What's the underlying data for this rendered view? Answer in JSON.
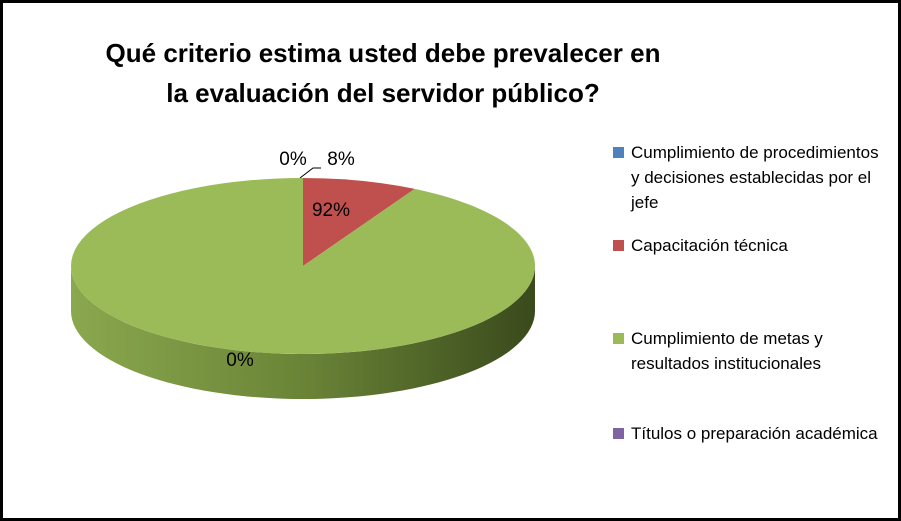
{
  "chart_data": {
    "type": "pie3d",
    "title": "Qué criterio estima usted debe prevalecer en la evaluación del servidor público?",
    "categories": [
      "Cumplimiento de procedimientos y decisiones establecidas por el jefe",
      "Capacitación técnica",
      "Cumplimiento de metas y resultados institucionales",
      "Títulos o preparación académica"
    ],
    "values": [
      0,
      8,
      92,
      0
    ],
    "value_labels": [
      "0%",
      "8%",
      "92%",
      "0%"
    ],
    "colors": [
      "#4f81bd",
      "#c0504d",
      "#9bbb59",
      "#8064a2"
    ],
    "legend": "right"
  }
}
